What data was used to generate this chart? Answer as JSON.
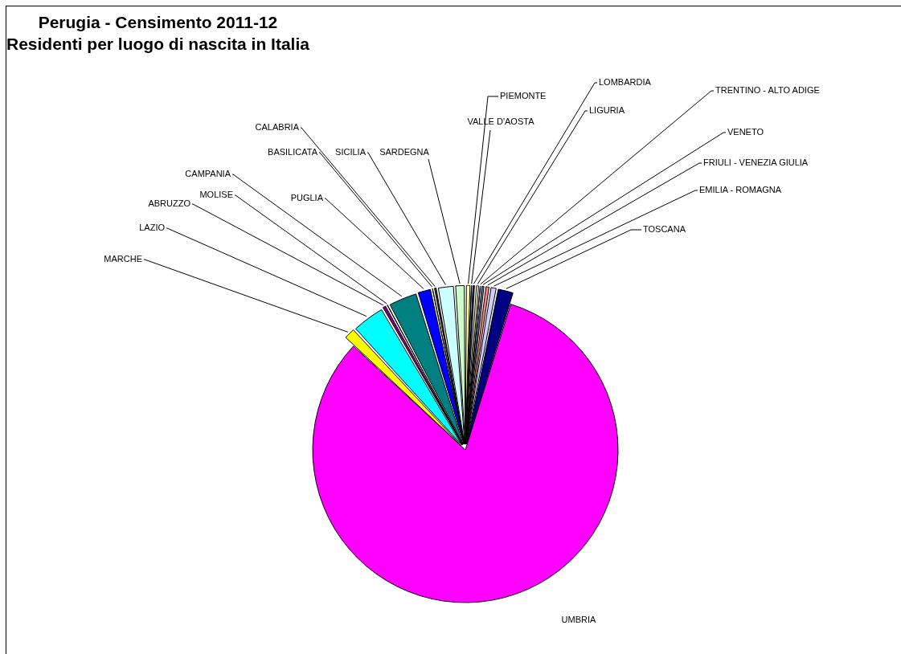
{
  "chart_data": {
    "type": "pie",
    "title": "Perugia - Censimento 2011-12",
    "subtitle": "Residenti per luogo di nascita in Italia",
    "categories": [
      "PIEMONTE",
      "VALLE D'AOSTA",
      "LOMBARDIA",
      "LIGURIA",
      "TRENTINO - ALTO ADIGE",
      "VENETO",
      "FRIULI - VENEZIA GIULIA",
      "EMILIA - ROMAGNA",
      "TOSCANA",
      "UMBRIA",
      "MARCHE",
      "LAZIO",
      "ABRUZZO",
      "MOLISE",
      "CAMPANIA",
      "PUGLIA",
      "BASILICATA",
      "CALABRIA",
      "SICILIA",
      "SARDEGNA"
    ],
    "values": [
      0.55,
      0.08,
      0.35,
      0.4,
      0.12,
      0.4,
      0.5,
      0.7,
      1.7,
      82.1,
      1.26,
      3.4,
      0.47,
      0.22,
      3.0,
      1.45,
      0.2,
      0.35,
      1.7,
      1.05
    ],
    "colors": [
      "#ffff99",
      "#9999ff",
      "#333366",
      "#ffffcc",
      "#ccffff",
      "#666699",
      "#ff8080",
      "#ccccff",
      "#000080",
      "#ff00ff",
      "#ffff00",
      "#00ffff",
      "#800080",
      "#800000",
      "#008080",
      "#0000ff",
      "#00ccff",
      "#333333",
      "#ccffff",
      "#ccffcc"
    ],
    "legend": false
  }
}
